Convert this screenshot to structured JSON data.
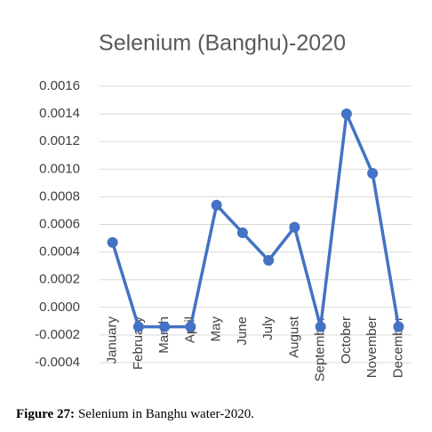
{
  "chart_data": {
    "type": "line",
    "title": "Selenium (Banghu)-2020",
    "categories": [
      "January",
      "February",
      "March",
      "April",
      "May",
      "June",
      "July",
      "August",
      "September",
      "October",
      "November",
      "December"
    ],
    "series": [
      {
        "name": "Selenium",
        "color": "#4472c4",
        "values": [
          0.00047,
          -0.00014,
          -0.00014,
          -0.00014,
          0.00074,
          0.00054,
          0.00034,
          0.00058,
          -0.00014,
          0.0014,
          0.00097,
          -0.00014
        ]
      }
    ],
    "ylim": [
      -0.0004,
      0.0016
    ],
    "yticks": [
      {
        "value": -0.0004,
        "label": "-0.0004"
      },
      {
        "value": -0.0002,
        "label": "-0.0002"
      },
      {
        "value": 0,
        "label": "0.0000"
      },
      {
        "value": 0.0002,
        "label": "0.0002"
      },
      {
        "value": 0.0004,
        "label": "0.0004"
      },
      {
        "value": 0.0006,
        "label": "0.0006"
      },
      {
        "value": 0.0008,
        "label": "0.0008"
      },
      {
        "value": 0.001,
        "label": "0.0010"
      },
      {
        "value": 0.0012,
        "label": "0.0012"
      },
      {
        "value": 0.0014,
        "label": "0.0014"
      },
      {
        "value": 0.0016,
        "label": "0.0016"
      }
    ],
    "grid": true
  },
  "caption": {
    "label": "Figure 27:",
    "text": "Selenium in Banghu water-2020."
  }
}
